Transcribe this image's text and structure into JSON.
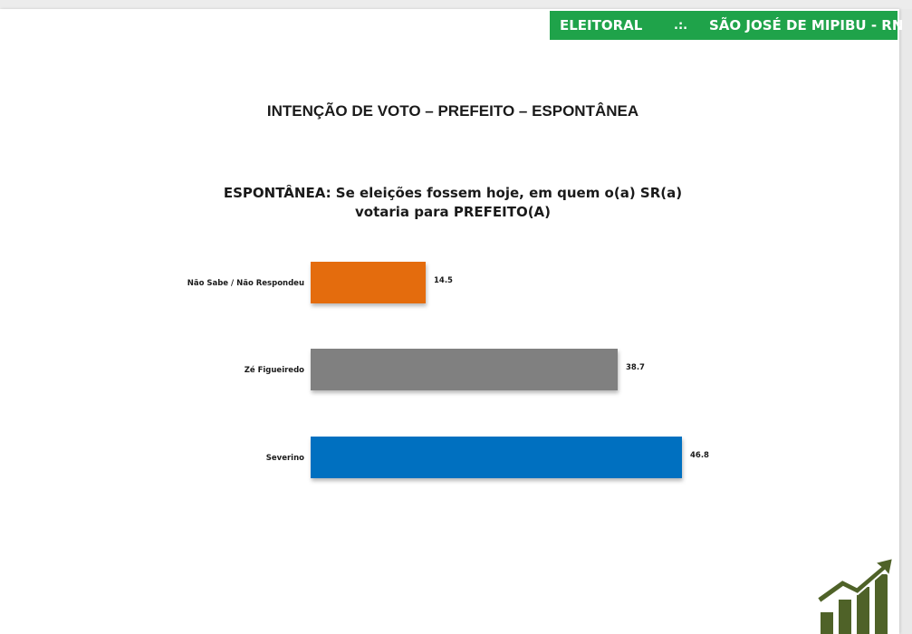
{
  "header": {
    "left": "ELEITORAL",
    "separator": ".:.",
    "right": "SÃO JOSÉ DE MIPIBU - RN",
    "color": "#1fa34a"
  },
  "chart_data": {
    "type": "bar",
    "orientation": "horizontal",
    "title": "INTENÇÃO DE VOTO – PREFEITO – ESPONTÂNEA",
    "subtitle_line1": "ESPONTÂNEA: Se eleições fossem hoje, em quem o(a) SR(a)",
    "subtitle_line2": "votaria para PREFEITO(A)",
    "categories": [
      "Não Sabe / Não Respondeu",
      "Zé Figueiredo",
      "Severino"
    ],
    "values": [
      14.5,
      38.7,
      46.8
    ],
    "value_labels": [
      "14.5",
      "38.7",
      "46.8"
    ],
    "colors": [
      "#e46c0a",
      "#808080",
      "#0070c0"
    ],
    "grid": false,
    "legend": "none"
  },
  "logo": {
    "icon": "bar-chart-growth-arrow-icon",
    "color": "#4f6228"
  }
}
